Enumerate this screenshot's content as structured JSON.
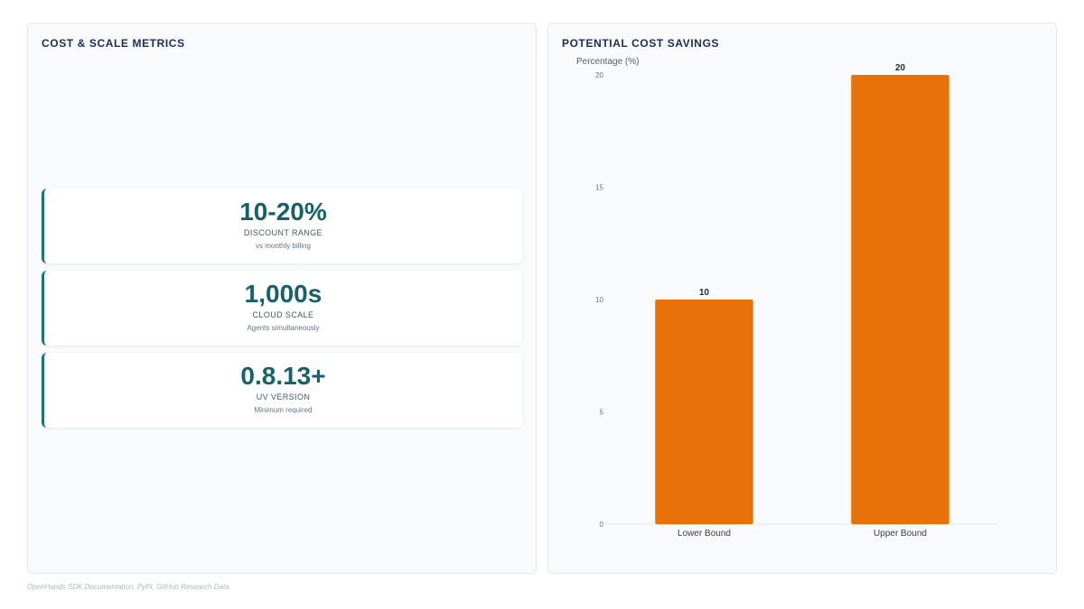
{
  "left_panel": {
    "title": "COST & SCALE METRICS",
    "metrics": [
      {
        "value": "10-20%",
        "label": "DISCOUNT RANGE",
        "sub": "vs monthly billing"
      },
      {
        "value": "1,000s",
        "label": "CLOUD SCALE",
        "sub": "Agents simultaneously"
      },
      {
        "value": "0.8.13+",
        "label": "UV VERSION",
        "sub": "Minimum required"
      }
    ]
  },
  "right_panel": {
    "title": "POTENTIAL COST SAVINGS"
  },
  "chart_data": {
    "type": "bar",
    "title": "POTENTIAL COST SAVINGS",
    "ylabel": "Percentage (%)",
    "xlabel": "",
    "categories": [
      "Lower Bound",
      "Upper Bound"
    ],
    "values": [
      10,
      20
    ],
    "data_labels": [
      "10",
      "20"
    ],
    "yticks": [
      0,
      5,
      10,
      15,
      20
    ],
    "ylim": [
      0,
      20
    ],
    "grid": false,
    "legend": "none",
    "bar_color": "#e8710a"
  },
  "footer": {
    "source": "OpenHands SDK Documentation, PyPI, GitHub Research Data"
  },
  "colors": {
    "accent": "#1b7378",
    "title": "#1e2a5e",
    "bar": "#e8710a"
  }
}
